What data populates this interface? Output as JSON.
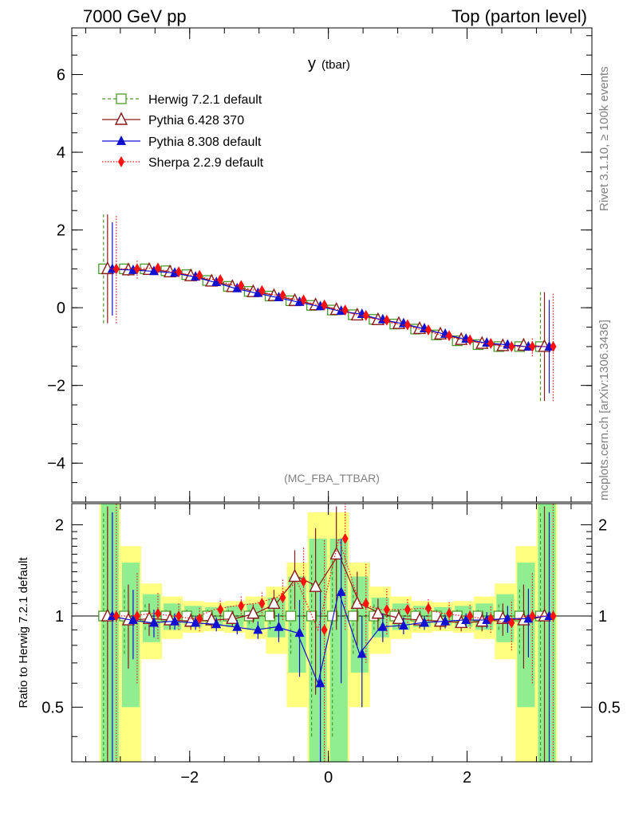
{
  "header": {
    "left": "7000 GeV pp",
    "right": "Top (parton level)"
  },
  "plot_title": "y",
  "plot_title_sub": "(tbar)",
  "analysis_tag": "(MC_FBA_TTBAR)",
  "side_label_top": "Rivet 3.1.10, ≥ 100k events",
  "side_label_bottom": "mcplots.cern.ch [arXiv:1306.3436]",
  "ratio_ylabel": "Ratio to Herwig 7.2.1 default",
  "colors": {
    "herwig": "#4a9a2a",
    "pythia6": "#8b1a1a",
    "pythia8": "#1010d0",
    "sherpa": "#ff1010",
    "band_inner": "#90ee90",
    "band_outer": "#ffff80"
  },
  "chart_data": [
    {
      "type": "scatter",
      "name": "main",
      "xlim": [
        -3.7,
        3.8
      ],
      "ylim": [
        -5.0,
        7.2
      ],
      "x_ticks": [
        -2,
        0,
        2
      ],
      "y_ticks": [
        -4,
        -2,
        0,
        2,
        4,
        6
      ],
      "y_tick_labels": [
        "−4",
        "−2",
        "0",
        "2",
        "4",
        "6"
      ],
      "x": [
        -3.15,
        -2.85,
        -2.55,
        -2.25,
        -1.95,
        -1.65,
        -1.35,
        -1.05,
        -0.75,
        -0.45,
        -0.15,
        0.15,
        0.45,
        0.75,
        1.05,
        1.35,
        1.65,
        1.95,
        2.25,
        2.55,
        2.85,
        3.15
      ],
      "series": [
        {
          "name": "Herwig 7.2.1 default",
          "marker": "open-square",
          "values": [
            1.0,
            1.0,
            1.0,
            0.95,
            0.85,
            0.7,
            0.55,
            0.42,
            0.3,
            0.18,
            0.06,
            -0.06,
            -0.18,
            -0.3,
            -0.42,
            -0.55,
            -0.7,
            -0.85,
            -0.95,
            -1.0,
            -1.0,
            -1.0
          ],
          "errors": [
            1.4,
            0.1,
            0.05,
            0.05,
            0.04,
            0.04,
            0.03,
            0.03,
            0.03,
            0.03,
            0.03,
            0.03,
            0.03,
            0.03,
            0.03,
            0.03,
            0.04,
            0.04,
            0.05,
            0.05,
            0.1,
            1.4
          ]
        },
        {
          "name": "Pythia 6.428 370",
          "marker": "open-triangle",
          "values": [
            1.0,
            0.97,
            0.98,
            0.92,
            0.82,
            0.68,
            0.54,
            0.41,
            0.31,
            0.18,
            0.07,
            -0.05,
            -0.19,
            -0.31,
            -0.41,
            -0.54,
            -0.68,
            -0.82,
            -0.92,
            -0.98,
            -0.97,
            -1.0
          ],
          "errors": [
            1.4,
            0.15,
            0.06,
            0.05,
            0.04,
            0.04,
            0.03,
            0.03,
            0.03,
            0.03,
            0.03,
            0.03,
            0.03,
            0.03,
            0.03,
            0.03,
            0.04,
            0.04,
            0.05,
            0.06,
            0.15,
            1.4
          ]
        },
        {
          "name": "Pythia 8.308 default",
          "marker": "filled-triangle",
          "values": [
            1.0,
            0.97,
            0.94,
            0.9,
            0.8,
            0.66,
            0.5,
            0.38,
            0.27,
            0.15,
            0.04,
            -0.08,
            -0.16,
            -0.3,
            -0.4,
            -0.53,
            -0.67,
            -0.8,
            -0.9,
            -0.95,
            -1.0,
            -1.0
          ],
          "errors": [
            1.2,
            0.1,
            0.05,
            0.04,
            0.04,
            0.03,
            0.03,
            0.03,
            0.03,
            0.03,
            0.03,
            0.03,
            0.03,
            0.03,
            0.03,
            0.03,
            0.03,
            0.04,
            0.04,
            0.05,
            0.1,
            1.2
          ]
        },
        {
          "name": "Sherpa 2.2.9 default",
          "marker": "filled-diamond",
          "values": [
            1.0,
            1.0,
            1.02,
            0.92,
            0.83,
            0.72,
            0.57,
            0.44,
            0.32,
            0.2,
            0.07,
            -0.06,
            -0.2,
            -0.32,
            -0.44,
            -0.57,
            -0.72,
            -0.83,
            -0.92,
            -1.0,
            -1.0,
            -1.0
          ],
          "errors": [
            1.4,
            0.25,
            0.1,
            0.08,
            0.07,
            0.06,
            0.05,
            0.05,
            0.05,
            0.05,
            0.05,
            0.05,
            0.05,
            0.05,
            0.05,
            0.05,
            0.06,
            0.07,
            0.08,
            0.1,
            0.25,
            1.4
          ]
        }
      ]
    },
    {
      "type": "scatter",
      "name": "ratio",
      "ylabel": "Ratio to Herwig 7.2.1 default",
      "xlim": [
        -3.7,
        3.8
      ],
      "ylim": [
        0.33,
        2.35
      ],
      "y_scale": "log",
      "x_ticks": [
        -2,
        0,
        2
      ],
      "x_tick_labels": [
        "−2",
        "0",
        "2"
      ],
      "y_ticks": [
        0.5,
        1,
        2
      ],
      "y_tick_labels": [
        "0.5",
        "1",
        "2"
      ],
      "x": [
        -3.15,
        -2.85,
        -2.55,
        -2.25,
        -1.95,
        -1.65,
        -1.35,
        -1.05,
        -0.75,
        -0.45,
        -0.15,
        0.15,
        0.45,
        0.75,
        1.05,
        1.35,
        1.65,
        1.95,
        2.25,
        2.55,
        2.85,
        3.15
      ],
      "bands": {
        "inner_halfwidth": [
          1.5,
          0.5,
          0.18,
          0.1,
          0.08,
          0.07,
          0.08,
          0.1,
          0.15,
          0.35,
          0.8,
          0.8,
          0.35,
          0.15,
          0.1,
          0.08,
          0.07,
          0.08,
          0.1,
          0.18,
          0.5,
          1.5
        ],
        "outer_halfwidth": [
          1.8,
          0.7,
          0.28,
          0.16,
          0.12,
          0.11,
          0.12,
          0.16,
          0.25,
          0.5,
          1.2,
          1.2,
          0.5,
          0.25,
          0.16,
          0.12,
          0.11,
          0.12,
          0.16,
          0.28,
          0.7,
          1.8
        ]
      },
      "series": [
        {
          "name": "Herwig 7.2.1 default",
          "values": [
            1,
            1,
            1,
            1,
            1,
            1,
            1,
            1,
            1,
            1,
            1,
            1,
            1,
            1,
            1,
            1,
            1,
            1,
            1,
            1,
            1,
            1
          ],
          "errors": [
            1.2,
            0.25,
            0.1,
            0.06,
            0.05,
            0.05,
            0.05,
            0.06,
            0.1,
            0.25,
            0.6,
            0.6,
            0.25,
            0.1,
            0.06,
            0.05,
            0.05,
            0.05,
            0.06,
            0.1,
            0.25,
            1.2
          ]
        },
        {
          "name": "Pythia 6.428 370",
          "values": [
            1.0,
            0.97,
            0.98,
            0.97,
            0.96,
            0.97,
            0.98,
            1.02,
            1.1,
            1.35,
            1.25,
            1.6,
            1.1,
            1.02,
            0.98,
            0.97,
            0.96,
            0.95,
            0.96,
            0.98,
            0.97,
            1.0
          ],
          "errors": [
            1.3,
            0.3,
            0.12,
            0.07,
            0.06,
            0.06,
            0.06,
            0.07,
            0.12,
            0.3,
            0.7,
            0.7,
            0.3,
            0.12,
            0.07,
            0.06,
            0.06,
            0.06,
            0.07,
            0.12,
            0.3,
            1.3
          ]
        },
        {
          "name": "Pythia 8.308 default",
          "values": [
            1.0,
            0.97,
            0.95,
            0.96,
            0.95,
            0.94,
            0.92,
            0.9,
            0.92,
            0.88,
            0.6,
            1.2,
            0.75,
            0.92,
            0.93,
            0.95,
            0.96,
            0.97,
            0.97,
            0.98,
            0.98,
            1.0
          ],
          "errors": [
            1.2,
            0.25,
            0.1,
            0.06,
            0.05,
            0.05,
            0.05,
            0.06,
            0.1,
            0.25,
            0.6,
            0.6,
            0.25,
            0.1,
            0.06,
            0.05,
            0.05,
            0.05,
            0.06,
            0.1,
            0.25,
            1.2
          ]
        },
        {
          "name": "Sherpa 2.2.9 default",
          "values": [
            1.0,
            1.0,
            1.02,
            1.0,
            0.98,
            1.05,
            1.08,
            1.1,
            1.15,
            1.3,
            0.9,
            1.8,
            1.1,
            1.05,
            1.05,
            1.06,
            1.02,
            1.0,
            0.98,
            0.95,
            1.0,
            1.0
          ],
          "errors": [
            1.4,
            0.4,
            0.18,
            0.1,
            0.09,
            0.09,
            0.09,
            0.1,
            0.18,
            0.4,
            0.9,
            0.9,
            0.4,
            0.18,
            0.1,
            0.09,
            0.09,
            0.09,
            0.1,
            0.18,
            0.4,
            1.4
          ]
        }
      ]
    }
  ]
}
